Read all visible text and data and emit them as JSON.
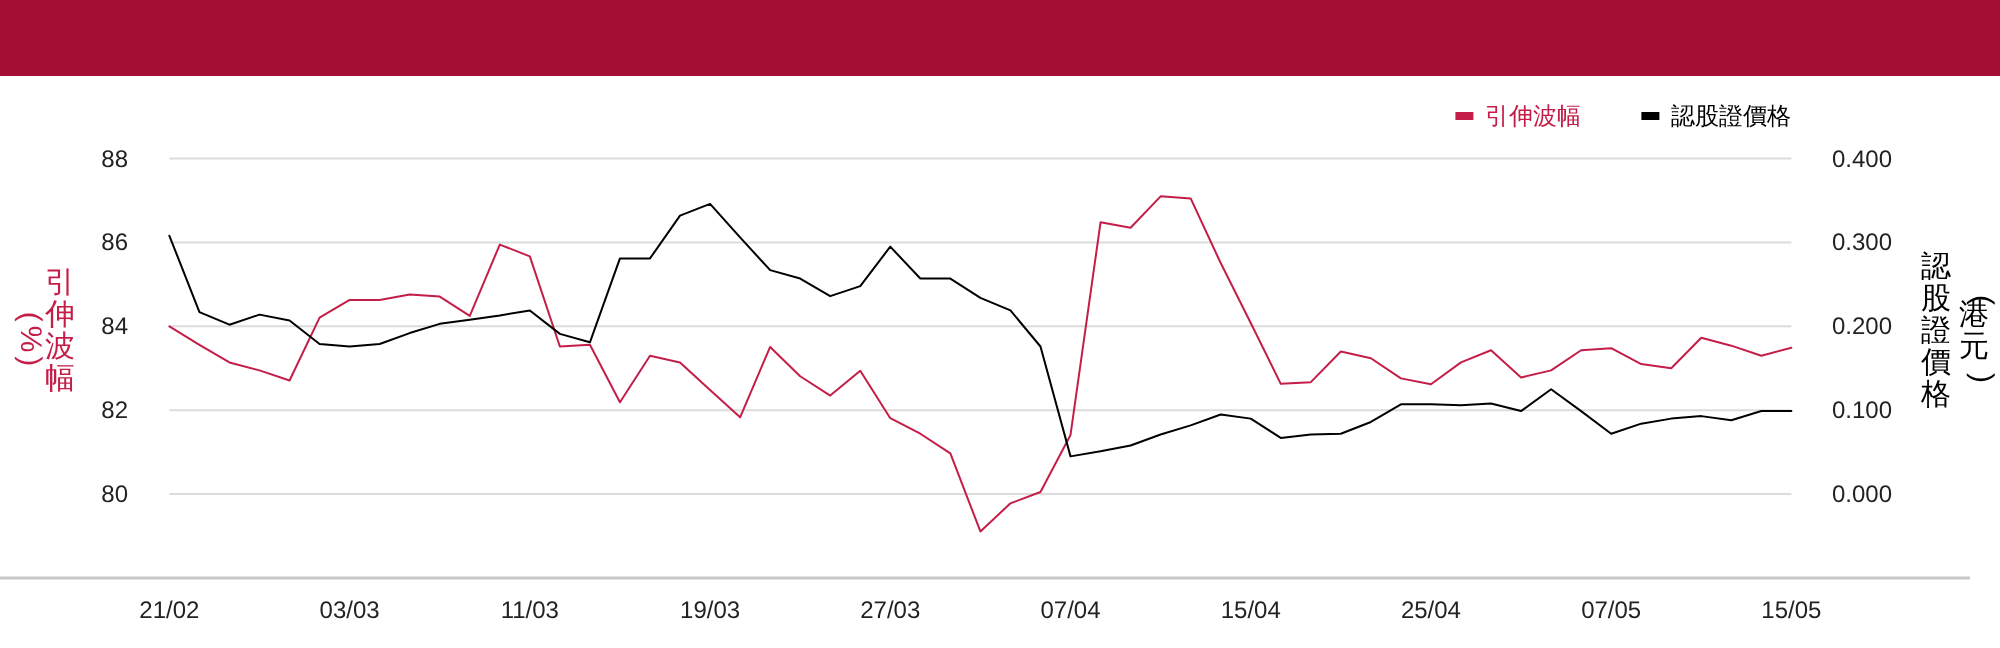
{
  "chart_data": {
    "type": "line",
    "categories": [
      "21/02",
      null,
      null,
      null,
      null,
      null,
      "03/03",
      null,
      null,
      null,
      null,
      null,
      "11/03",
      null,
      null,
      null,
      null,
      null,
      "19/03",
      null,
      null,
      null,
      null,
      null,
      "27/03",
      null,
      null,
      null,
      null,
      null,
      "07/04",
      null,
      null,
      null,
      null,
      null,
      "15/04",
      null,
      null,
      null,
      null,
      null,
      "25/04",
      null,
      null,
      null,
      null,
      null,
      "07/05",
      null,
      null,
      null,
      null,
      null,
      "15/05"
    ],
    "series": [
      {
        "name": "引伸波幅",
        "color": "#c41e48",
        "values": [
          84.0,
          83.56,
          83.14,
          82.95,
          82.71,
          84.21,
          84.63,
          84.63,
          84.76,
          84.71,
          84.25,
          85.95,
          85.67,
          83.52,
          83.56,
          82.19,
          83.3,
          83.14,
          82.48,
          81.83,
          83.51,
          82.81,
          82.35,
          82.94,
          81.81,
          81.44,
          80.97,
          79.11,
          79.78,
          80.05,
          81.41,
          86.48,
          86.35,
          87.1,
          87.05,
          85.51,
          84.08,
          82.63,
          82.67,
          83.4,
          83.24,
          82.76,
          82.62,
          83.14,
          83.43,
          82.78,
          82.95,
          83.43,
          83.48,
          83.1,
          83.0,
          83.73,
          83.54,
          83.3,
          83.49
        ]
      },
      {
        "name": "認股證價格",
        "color": "#000000",
        "axis": "y2",
        "values": [
          0.308,
          0.217,
          0.202,
          0.214,
          0.207,
          0.179,
          0.176,
          0.179,
          0.192,
          0.203,
          0.208,
          0.213,
          0.219,
          0.191,
          0.181,
          0.281,
          0.281,
          0.332,
          0.346,
          0.306,
          0.267,
          0.257,
          0.236,
          0.248,
          0.295,
          0.257,
          0.257,
          0.234,
          0.219,
          0.176,
          0.045,
          0.051,
          0.058,
          0.071,
          0.082,
          0.095,
          0.09,
          0.067,
          0.071,
          0.072,
          0.086,
          0.107,
          0.107,
          0.106,
          0.108,
          0.099,
          0.125,
          0.099,
          0.072,
          0.084,
          0.09,
          0.093,
          0.088,
          0.099,
          0.099
        ]
      }
    ],
    "ylabel": "引伸波幅 (%)",
    "y2label": "認股證價格 (港元)",
    "ylim": [
      78,
      88
    ],
    "yticks": [
      80,
      82,
      84,
      86,
      88
    ],
    "y2lim": [
      -0.1,
      0.4
    ],
    "y2ticks": [
      {
        "value": 0,
        "label": "0.000"
      },
      {
        "value": 0.1,
        "label": "0.100"
      },
      {
        "value": 0.2,
        "label": "0.200"
      },
      {
        "value": 0.3,
        "label": "0.300"
      },
      {
        "value": 0.4,
        "label": "0.400"
      }
    ],
    "grid": "y",
    "legend": "top right"
  }
}
